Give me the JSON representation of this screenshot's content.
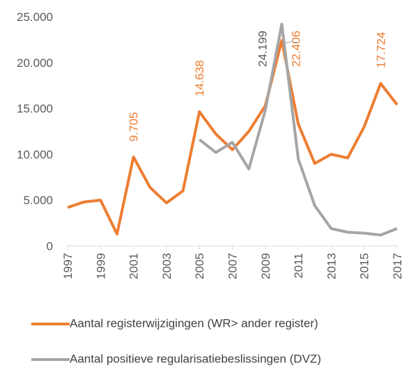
{
  "chart_data": {
    "type": "line",
    "x": [
      1997,
      1998,
      1999,
      2000,
      2001,
      2002,
      2003,
      2004,
      2005,
      2006,
      2007,
      2008,
      2009,
      2010,
      2011,
      2012,
      2013,
      2014,
      2015,
      2016,
      2017
    ],
    "xlim": [
      1997,
      2017
    ],
    "xticks": [
      1997,
      1999,
      2001,
      2003,
      2005,
      2007,
      2009,
      2011,
      2013,
      2015,
      2017
    ],
    "ylim": [
      0,
      25000
    ],
    "yticks": [
      0,
      {
        "value": 5000,
        "label": "5.000"
      },
      {
        "value": 10000,
        "label": "10.000"
      },
      {
        "value": 15000,
        "label": "15.000"
      },
      {
        "value": 20000,
        "label": "20.000"
      },
      {
        "value": 25000,
        "label": "25.000"
      }
    ],
    "grid": false,
    "legend": "bottom",
    "series": [
      {
        "name": "Aantal registerwijzigingen (WR> ander register)",
        "color": "#ed7d31",
        "values": [
          4200,
          4800,
          5000,
          1300,
          9705,
          6400,
          4700,
          6000,
          14638,
          12200,
          10500,
          12500,
          15300,
          22406,
          13300,
          9000,
          10000,
          9600,
          13000,
          17724,
          15400
        ],
        "value_labels": [
          null,
          null,
          null,
          null,
          "9.705",
          null,
          null,
          null,
          "14.638",
          null,
          null,
          null,
          null,
          "22.406",
          null,
          null,
          null,
          null,
          null,
          "17.724",
          null
        ]
      },
      {
        "name": "Aantal positieve regularisatiebeslissingen (DVZ)",
        "color": "#a5a5a5",
        "values": [
          null,
          null,
          null,
          null,
          null,
          null,
          null,
          null,
          11600,
          10200,
          11300,
          8400,
          14800,
          24199,
          9500,
          4400,
          1900,
          1500,
          1400,
          1200,
          1900
        ],
        "value_labels": [
          null,
          null,
          null,
          null,
          null,
          null,
          null,
          null,
          null,
          null,
          null,
          null,
          null,
          "24.199",
          null,
          null,
          null,
          null,
          null,
          null,
          null
        ]
      }
    ]
  }
}
